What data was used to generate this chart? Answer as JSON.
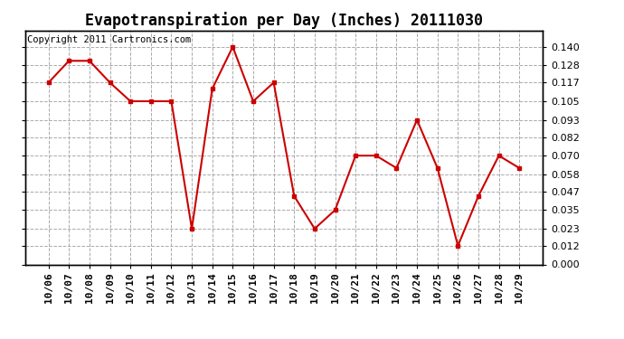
{
  "title": "Evapotranspiration per Day (Inches) 20111030",
  "copyright": "Copyright 2011 Cartronics.com",
  "x_labels": [
    "10/06",
    "10/07",
    "10/08",
    "10/09",
    "10/10",
    "10/11",
    "10/12",
    "10/13",
    "10/14",
    "10/15",
    "10/16",
    "10/17",
    "10/18",
    "10/19",
    "10/20",
    "10/21",
    "10/22",
    "10/23",
    "10/24",
    "10/25",
    "10/26",
    "10/27",
    "10/28",
    "10/29"
  ],
  "y_values": [
    0.117,
    0.131,
    0.131,
    0.117,
    0.105,
    0.105,
    0.105,
    0.023,
    0.113,
    0.14,
    0.105,
    0.117,
    0.044,
    0.023,
    0.035,
    0.07,
    0.07,
    0.062,
    0.093,
    0.062,
    0.012,
    0.044,
    0.07,
    0.062
  ],
  "line_color": "#cc0000",
  "marker": "s",
  "marker_size": 3,
  "linewidth": 1.5,
  "ylim": [
    0.0,
    0.1505
  ],
  "yticks": [
    0.0,
    0.012,
    0.023,
    0.035,
    0.047,
    0.058,
    0.07,
    0.082,
    0.093,
    0.105,
    0.117,
    0.128,
    0.14
  ],
  "background_color": "#ffffff",
  "grid_color": "#aaaaaa",
  "title_fontsize": 12,
  "tick_fontsize": 8,
  "copyright_fontsize": 7.5
}
